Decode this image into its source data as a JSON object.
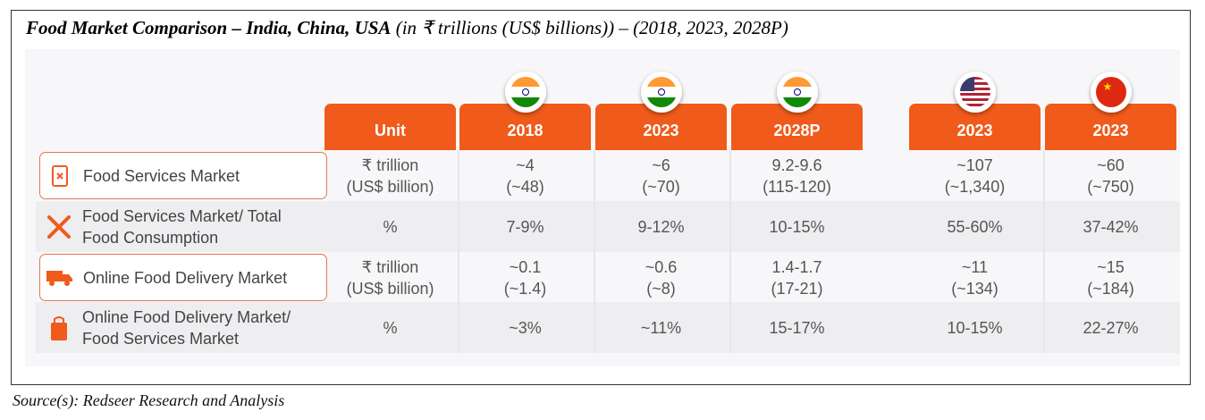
{
  "title": {
    "bold": "Food Market Comparison – India, China, USA",
    "italic": " (in ₹ trillions (US$ billions)) – (2018, 2023, 2028P)"
  },
  "source": "Source(s): Redseer Research and Analysis",
  "colors": {
    "accent": "#f05a1a",
    "border": "#e07a50",
    "alt_row": "#eeeef1"
  },
  "headers": [
    {
      "label": "Unit",
      "flag": ""
    },
    {
      "label": "2018",
      "flag": "india-flag-icon"
    },
    {
      "label": "2023",
      "flag": "india-flag-icon"
    },
    {
      "label": "2028P",
      "flag": "india-flag-icon"
    },
    {
      "label": "2023",
      "flag": "usa-flag-icon"
    },
    {
      "label": "2023",
      "flag": "china-flag-icon"
    }
  ],
  "rows": [
    {
      "label": [
        "Food Services Market"
      ],
      "icon": "receipt-icon",
      "cells": [
        [
          "₹ trillion",
          "(US$ billion)"
        ],
        [
          "~4",
          "(~48)"
        ],
        [
          "~6",
          "(~70)"
        ],
        [
          "9.2-9.6",
          "(115-120)"
        ],
        [
          "~107",
          "(~1,340)"
        ],
        [
          "~60",
          "(~750)"
        ]
      ]
    },
    {
      "label": [
        "Food Services Market/ Total",
        "Food Consumption"
      ],
      "icon": "fork-knife-icon",
      "cells": [
        [
          "%"
        ],
        [
          "7-9%"
        ],
        [
          "9-12%"
        ],
        [
          "10-15%"
        ],
        [
          "55-60%"
        ],
        [
          "37-42%"
        ]
      ]
    },
    {
      "label": [
        "Online Food Delivery Market"
      ],
      "icon": "delivery-truck-icon",
      "cells": [
        [
          "₹ trillion",
          "(US$ billion)"
        ],
        [
          "~0.1",
          "(~1.4)"
        ],
        [
          "~0.6",
          "(~8)"
        ],
        [
          "1.4-1.7",
          "(17-21)"
        ],
        [
          "~11",
          "(~134)"
        ],
        [
          "~15",
          "(~184)"
        ]
      ]
    },
    {
      "label": [
        "Online Food Delivery Market/",
        "Food Services Market"
      ],
      "icon": "food-bag-icon",
      "cells": [
        [
          "%"
        ],
        [
          "~3%"
        ],
        [
          "~11%"
        ],
        [
          "15-17%"
        ],
        [
          "10-15%"
        ],
        [
          "22-27%"
        ]
      ]
    }
  ]
}
